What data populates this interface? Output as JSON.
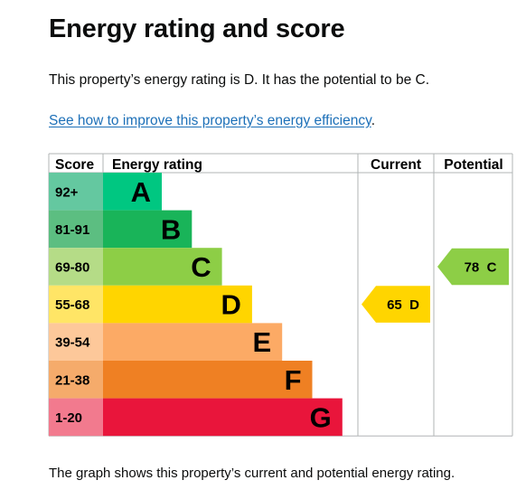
{
  "page": {
    "title": "Energy rating and score",
    "summary": "This property’s energy rating is D. It has the potential to be C.",
    "link_text": "See how to improve this property’s energy efficiency",
    "link_suffix": ".",
    "footer": "The graph shows this property’s current and potential energy rating."
  },
  "chart_data": {
    "type": "bar",
    "headers": {
      "score": "Score",
      "rating": "Energy rating",
      "current": "Current",
      "potential": "Potential"
    },
    "bands": [
      {
        "letter": "A",
        "range": "92+",
        "min": 92,
        "max": 100,
        "color": "#00c781",
        "light": "#64c8a0"
      },
      {
        "letter": "B",
        "range": "81-91",
        "min": 81,
        "max": 91,
        "color": "#19b459",
        "light": "#5cbe81"
      },
      {
        "letter": "C",
        "range": "69-80",
        "min": 69,
        "max": 80,
        "color": "#8dce46",
        "light": "#b5dc87"
      },
      {
        "letter": "D",
        "range": "55-68",
        "min": 55,
        "max": 68,
        "color": "#ffd500",
        "light": "#ffe566"
      },
      {
        "letter": "E",
        "range": "39-54",
        "min": 39,
        "max": 54,
        "color": "#fcaa65",
        "light": "#fdc89a"
      },
      {
        "letter": "F",
        "range": "21-38",
        "min": 21,
        "max": 38,
        "color": "#ef8023",
        "light": "#f5ab6b"
      },
      {
        "letter": "G",
        "range": "1-20",
        "min": 1,
        "max": 20,
        "color": "#e9153b",
        "light": "#f27a8e"
      }
    ],
    "current": {
      "score": 65,
      "letter": "D",
      "label": "65  D"
    },
    "potential": {
      "score": 78,
      "letter": "C",
      "label": "78  C"
    }
  }
}
